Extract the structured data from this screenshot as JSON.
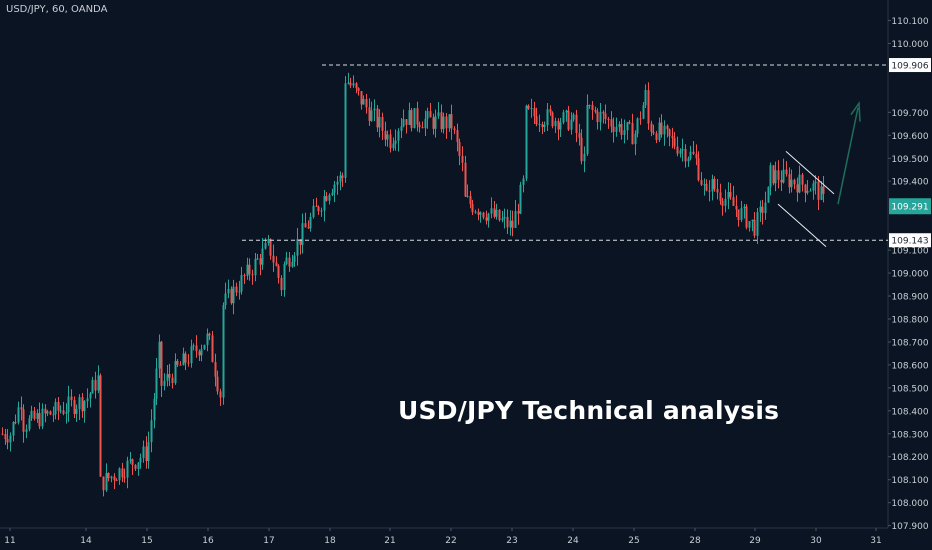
{
  "symbol_label": "USD/JPY, 60, OANDA",
  "headline": "USD/JPY Technical analysis",
  "colors": {
    "background": "#0a1422",
    "up": "#26a69a",
    "down": "#ef5350",
    "level_line": "#d9dde3",
    "current_price_bg": "#26a69a",
    "arrow": "#1f6e5c",
    "axis_text": "#c9ced6"
  },
  "chart_data": {
    "type": "candlestick",
    "title": "USD/JPY, 60, OANDA",
    "xlabel": "",
    "ylabel": "",
    "ylim": [
      107.9,
      110.1
    ],
    "grid": false,
    "x_ticks": [
      "11",
      "14",
      "15",
      "16",
      "17",
      "18",
      "21",
      "22",
      "23",
      "24",
      "25",
      "28",
      "29",
      "30",
      "31"
    ],
    "y_ticks": [
      "110.100",
      "110.000",
      "109.906",
      "109.700",
      "109.600",
      "109.500",
      "109.400",
      "109.291",
      "109.143",
      "109.100",
      "109.000",
      "108.900",
      "108.800",
      "108.700",
      "108.600",
      "108.500",
      "108.400",
      "108.300",
      "108.200",
      "108.100",
      "108.000",
      "107.900"
    ],
    "levels": [
      {
        "label": "109.906",
        "value": 109.906,
        "style": "dashed",
        "from_session": "18"
      },
      {
        "label": "109.143",
        "value": 109.143,
        "style": "dashed",
        "from_session": "16"
      }
    ],
    "current_price": {
      "label": "109.291",
      "value": 109.291
    },
    "price_path": [
      {
        "session": "11",
        "price": 108.3
      },
      {
        "session": "11",
        "price": 108.48
      },
      {
        "session": "11",
        "price": 108.32
      },
      {
        "session": "14",
        "price": 108.45
      },
      {
        "session": "14",
        "price": 108.55
      },
      {
        "session": "14",
        "price": 108.18
      },
      {
        "session": "14",
        "price": 108.08
      },
      {
        "session": "15",
        "price": 108.22
      },
      {
        "session": "15",
        "price": 108.7
      },
      {
        "session": "15",
        "price": 108.45
      },
      {
        "session": "16",
        "price": 108.72
      },
      {
        "session": "16",
        "price": 108.45
      },
      {
        "session": "16",
        "price": 108.78
      },
      {
        "session": "17",
        "price": 109.12
      },
      {
        "session": "17",
        "price": 108.93
      },
      {
        "session": "17",
        "price": 108.78
      },
      {
        "session": "17",
        "price": 109.02
      },
      {
        "session": "18",
        "price": 109.38
      },
      {
        "session": "18",
        "price": 109.42
      },
      {
        "session": "18",
        "price": 109.58
      },
      {
        "session": "18",
        "price": 109.86
      },
      {
        "session": "21",
        "price": 109.58
      },
      {
        "session": "21",
        "price": 109.68
      },
      {
        "session": "22",
        "price": 109.65
      },
      {
        "session": "22",
        "price": 109.42
      },
      {
        "session": "22",
        "price": 109.35
      },
      {
        "session": "23",
        "price": 109.2
      },
      {
        "session": "23",
        "price": 109.42
      },
      {
        "session": "23",
        "price": 109.7
      },
      {
        "session": "24",
        "price": 109.66
      },
      {
        "session": "24",
        "price": 109.45
      },
      {
        "session": "24",
        "price": 109.75
      },
      {
        "session": "25",
        "price": 109.6
      },
      {
        "session": "25",
        "price": 109.8
      },
      {
        "session": "25",
        "price": 109.88
      },
      {
        "session": "25",
        "price": 109.65
      },
      {
        "session": "28",
        "price": 109.5
      },
      {
        "session": "28",
        "price": 109.3
      },
      {
        "session": "28",
        "price": 109.45
      },
      {
        "session": "29",
        "price": 109.2
      },
      {
        "session": "29",
        "price": 109.35
      },
      {
        "session": "29",
        "price": 109.45
      },
      {
        "session": "30",
        "price": 109.37
      },
      {
        "session": "30",
        "price": 109.27
      },
      {
        "session": "30",
        "price": 109.291
      }
    ],
    "annotations": [
      {
        "type": "falling-channel",
        "session_start": "29",
        "session_end": "30"
      },
      {
        "type": "bullish-arrow",
        "session": "30"
      }
    ]
  }
}
